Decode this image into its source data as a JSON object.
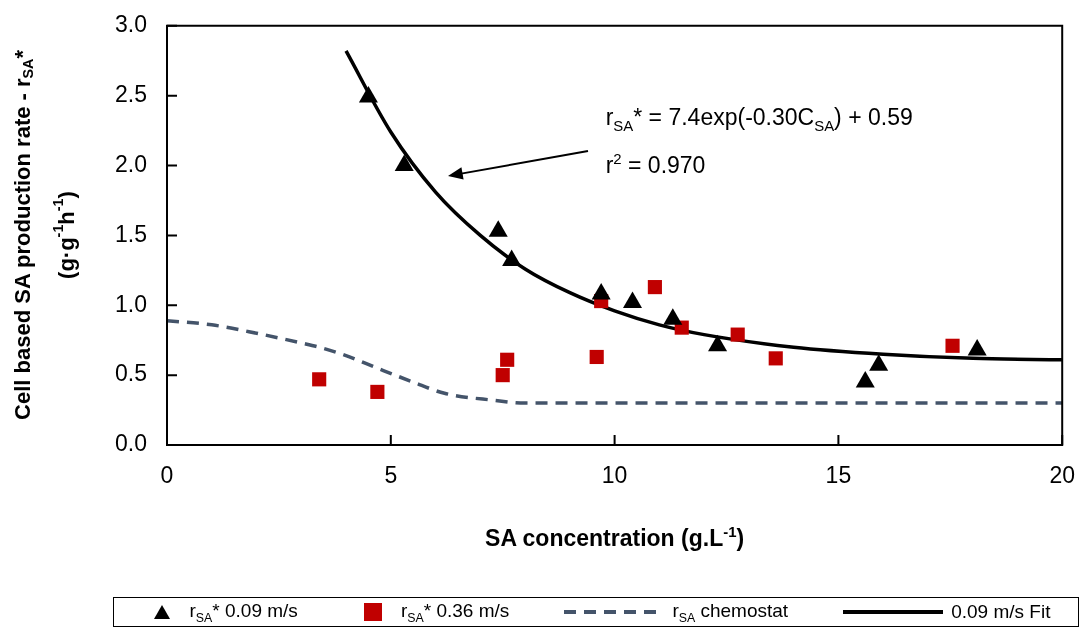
{
  "chart_data": {
    "type": "scatter",
    "xlabel": "SA concentration (g.L$^{-1}$)",
    "ylabel": "Cell based SA production rate - r$_{SA}$*\n(g·g$^{-1}$h$^{-1}$)",
    "xlim": [
      0,
      20
    ],
    "xticks": [
      0,
      5,
      10,
      15,
      20
    ],
    "ylim": [
      0,
      3.0
    ],
    "yticks": [
      {
        "value": 0,
        "label": "0.0"
      },
      {
        "value": 0.5,
        "label": "0.5"
      },
      {
        "value": 1,
        "label": "1.0"
      },
      {
        "value": 1.5,
        "label": "1.5"
      },
      {
        "value": 2,
        "label": "2.0"
      },
      {
        "value": 2.5,
        "label": "2.5"
      },
      {
        "value": 3,
        "label": "3.0"
      }
    ],
    "grid": false,
    "legend": "bottom",
    "series": [
      {
        "name": "r$_{SA}$* 0.09 m/s",
        "type": "scatter",
        "marker": "triangle",
        "color": "#000000",
        "x": [
          4.5,
          5.3,
          7.4,
          7.7,
          9.7,
          10.4,
          11.3,
          12.3,
          15.6,
          15.9,
          18.1
        ],
        "values": [
          2.49,
          2.0,
          1.53,
          1.32,
          1.08,
          1.02,
          0.9,
          0.71,
          0.45,
          0.57,
          0.68
        ]
      },
      {
        "name": "r$_{SA}$* 0.36 m/s",
        "type": "scatter",
        "marker": "square",
        "color": "#c00000",
        "x": [
          3.4,
          4.7,
          7.5,
          7.6,
          9.6,
          9.7,
          10.9,
          11.5,
          12.75,
          13.6,
          17.55
        ],
        "values": [
          0.47,
          0.38,
          0.5,
          0.61,
          0.63,
          1.03,
          1.13,
          0.84,
          0.79,
          0.62,
          0.71
        ]
      },
      {
        "name": "r$_{SA}$ chemostat",
        "type": "line",
        "marker": "none",
        "line_style": "dashed",
        "color": "#44546a",
        "x": [
          0,
          1,
          2,
          3,
          3.4,
          4,
          4.7,
          5.5,
          6.2,
          7.3,
          8,
          10,
          15,
          20
        ],
        "values": [
          0.89,
          0.86,
          0.8,
          0.73,
          0.7,
          0.64,
          0.55,
          0.45,
          0.37,
          0.32,
          0.3,
          0.3,
          0.3,
          0.3
        ]
      },
      {
        "name": "0.09 m/s Fit",
        "type": "line",
        "marker": "none",
        "line_style": "solid",
        "color": "#000000",
        "x": [
          4,
          5,
          6,
          7,
          8,
          9,
          10,
          11,
          12,
          14,
          16,
          18,
          20
        ],
        "values": [
          2.82,
          2.24,
          1.81,
          1.5,
          1.26,
          1.09,
          0.96,
          0.86,
          0.79,
          0.7,
          0.65,
          0.62,
          0.61
        ]
      }
    ],
    "annotations": [
      "r$_{SA}$* = 7.4exp(-0.30C$_{SA}$) + 0.59",
      "r$^{2}$ = 0.970"
    ]
  }
}
